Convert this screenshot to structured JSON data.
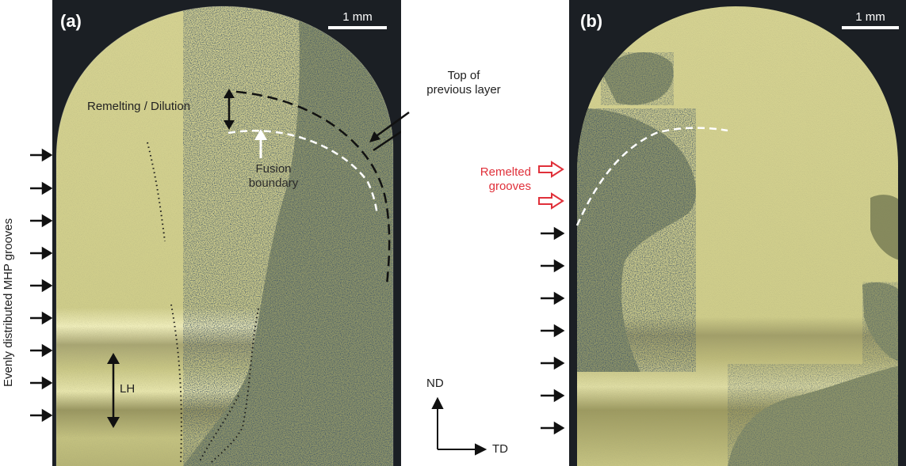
{
  "panel_a": {
    "label": "(a)",
    "scale_bar": "1 mm",
    "annotations": {
      "remelting": "Remelting / Dilution",
      "top_of_previous_layer_1": "Top of",
      "top_of_previous_layer_2": "previous layer",
      "fusion_boundary_1": "Fusion",
      "fusion_boundary_2": "boundary",
      "layer_height": "LH"
    },
    "side_label": "Evenly distributed MHP grooves",
    "groove_arrow_count": 9
  },
  "panel_b": {
    "label": "(b)",
    "scale_bar": "1 mm",
    "annotations": {
      "remelted_1": "Remelted",
      "remelted_2": "grooves"
    },
    "red_arrow_count": 2,
    "groove_arrow_count": 7
  },
  "axes": {
    "vertical": "ND",
    "horizontal": "TD"
  },
  "colors": {
    "background": "#1b1f24",
    "specimen": "#c9c98a",
    "annotation_red": "#e0303a"
  }
}
